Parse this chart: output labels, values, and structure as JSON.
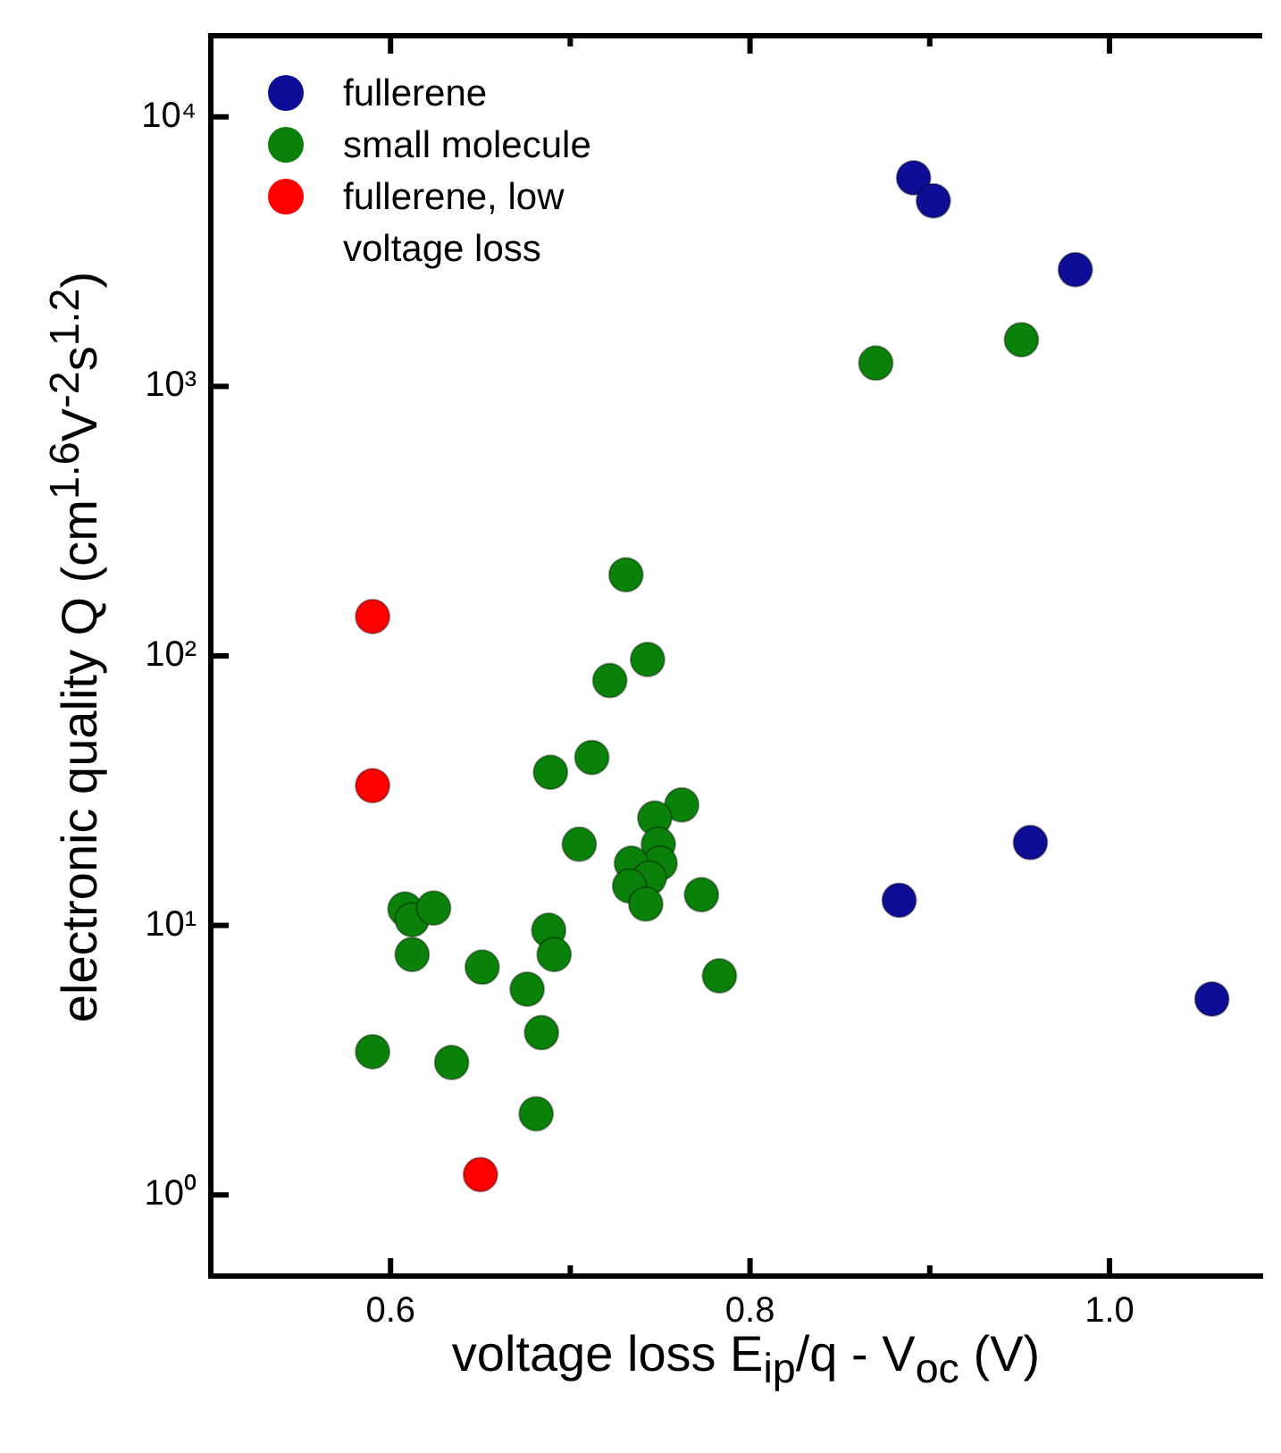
{
  "chart_data": {
    "type": "scatter",
    "xlabel": "voltage loss E$_{ip}$/q - V$_{oc}$ (V)",
    "ylabel": "electronic quality Q (cm$^{1.6}$V$^{-2}$s$^{1.2}$)",
    "xlim": [
      0.5,
      1.085
    ],
    "xticks": [
      0.6,
      {
        "value": 0.7,
        "label": null
      },
      0.8,
      {
        "value": 0.9,
        "label": null
      },
      {
        "value": 1.0,
        "label": "1.0"
      }
    ],
    "ylim": [
      0.5,
      20000
    ],
    "yticks": [
      {
        "value": 1,
        "label": "10⁰"
      },
      {
        "value": 10,
        "label": "10¹"
      },
      {
        "value": 100,
        "label": "10²"
      },
      {
        "value": 1000,
        "label": "10³"
      },
      {
        "value": 10000,
        "label": "10⁴"
      }
    ],
    "log": "y",
    "grid": false,
    "legend": "top left",
    "marker": "circle",
    "series": [
      {
        "name": "fullerene",
        "color": "#0d0d96",
        "x": [
          0.891,
          0.902,
          0.981,
          0.883,
          0.956,
          1.057
        ],
        "values": [
          5940,
          4880,
          2710,
          12.4,
          20.3,
          5.33
        ]
      },
      {
        "name": "small molecule",
        "color": "#0a820a",
        "x": [
          0.951,
          0.87,
          0.731,
          0.743,
          0.722,
          0.689,
          0.712,
          0.762,
          0.747,
          0.749,
          0.75,
          0.734,
          0.744,
          0.733,
          0.742,
          0.705,
          0.773,
          0.608,
          0.612,
          0.624,
          0.612,
          0.651,
          0.688,
          0.691,
          0.676,
          0.783,
          0.684,
          0.59,
          0.634,
          0.681
        ],
        "values": [
          1490,
          1220,
          200,
          97,
          81,
          37,
          42,
          28,
          25,
          20,
          17,
          17,
          15,
          14,
          12,
          20,
          13,
          11.5,
          10.5,
          11.6,
          7.8,
          7.0,
          9.6,
          7.8,
          5.8,
          6.5,
          4.0,
          3.4,
          3.1,
          2.0
        ]
      },
      {
        "name": "fullerene, low voltage loss",
        "color": "#ff0000",
        "x": [
          0.59,
          0.59,
          0.65
        ],
        "values": [
          140,
          33,
          1.19
        ]
      }
    ]
  }
}
